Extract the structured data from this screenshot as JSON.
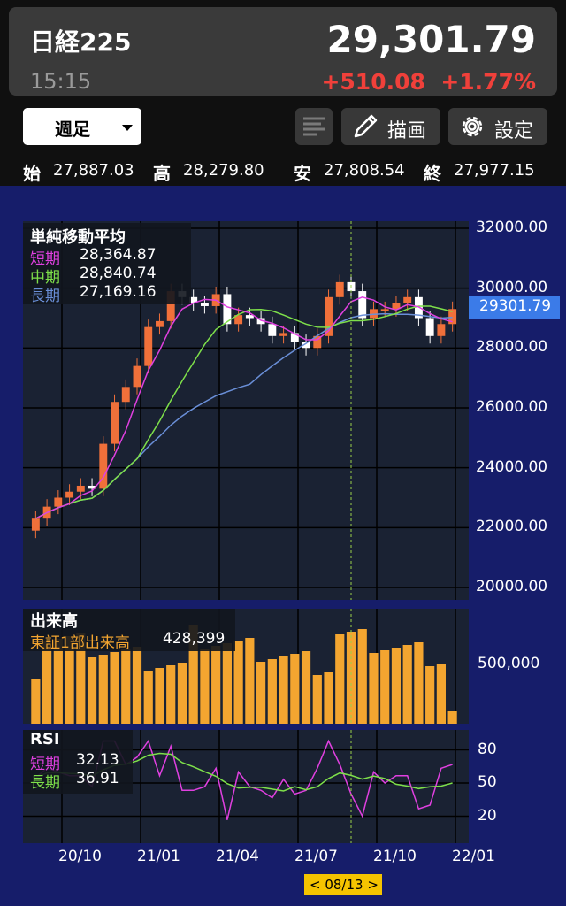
{
  "header": {
    "name": "日経225",
    "time": "15:15",
    "price": "29,301.79",
    "change": "+510.08",
    "change_pct": "+1.77%"
  },
  "toolbar": {
    "period_label": "週足",
    "draw_label": "描画",
    "settings_label": "設定"
  },
  "ohlc": {
    "open_label": "始",
    "open": "27,887.03",
    "high_label": "高",
    "high": "28,279.80",
    "low_label": "安",
    "low": "27,808.54",
    "close_label": "終",
    "close": "27,977.15"
  },
  "price_panel": {
    "legend_title": "単純移動平均",
    "short_label": "短期",
    "short_value": "28,364.87",
    "mid_label": "中期",
    "mid_value": "28,840.74",
    "long_label": "長期",
    "long_value": "27,169.16",
    "y_ticks": [
      "32000.00",
      "30000.00",
      "28000.00",
      "26000.00",
      "24000.00",
      "22000.00",
      "20000.00"
    ],
    "current_tag": "29301.79"
  },
  "volume_panel": {
    "title": "出来高",
    "series_label": "東証1部出来高",
    "series_value": "428,399",
    "y_tick": "500,000"
  },
  "rsi_panel": {
    "title": "RSI",
    "short_label": "短期",
    "short_value": "32.13",
    "long_label": "長期",
    "long_value": "36.91",
    "y_ticks": [
      "80",
      "50",
      "20"
    ]
  },
  "x_ticks": [
    "20/10",
    "21/01",
    "21/04",
    "21/07",
    "21/10",
    "22/01"
  ],
  "cursor_date": "< 08/13 >",
  "colors": {
    "up": "#f0703a",
    "down": "#ffffff",
    "sma_short": "#e040e0",
    "sma_mid": "#7ee04a",
    "sma_long": "#6a8fd8",
    "volume": "#f3a530",
    "chart_bg": "#1a2233",
    "frame_bg": "#161d6a",
    "change": "#f0403a"
  },
  "chart_data": {
    "type": "candlestick",
    "interval": "weekly",
    "y_range": [
      20000,
      32000
    ],
    "x_labels": [
      "20/10",
      "21/01",
      "21/04",
      "21/07",
      "21/10",
      "22/01"
    ],
    "closes": [
      22300,
      22700,
      23000,
      23200,
      23400,
      23300,
      24800,
      26200,
      26700,
      27400,
      28700,
      28900,
      29900,
      29700,
      29500,
      29400,
      29800,
      28800,
      29100,
      29000,
      28800,
      28400,
      28500,
      28200,
      28000,
      28400,
      29700,
      30200,
      29900,
      29000,
      29300,
      29300,
      29500,
      29700,
      29000,
      28400,
      28800,
      29301.79
    ],
    "sma_short_last": 28364.87,
    "sma_mid_last": 28840.74,
    "sma_long_last": 27169.16,
    "volume_last": 428399,
    "rsi_short_last": 32.13,
    "rsi_long_last": 36.91
  },
  "icons": [
    "chevron-down-icon",
    "list-icon",
    "pencil-icon",
    "gear-icon"
  ]
}
